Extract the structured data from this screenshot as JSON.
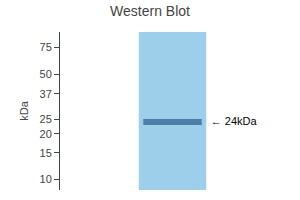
{
  "chart_data": {
    "type": "blot",
    "title": "Western Blot",
    "ylabel": "kDa",
    "log": "y",
    "ylim": [
      8.5,
      95
    ],
    "yticks": [
      75,
      50,
      37,
      25,
      20,
      15,
      10
    ],
    "grid": false,
    "tick_labels": "y",
    "series": [
      {
        "type": "lane",
        "color": "#9ecfea"
      },
      {
        "type": "band",
        "color": "#4a7fa8",
        "values": [
          24
        ],
        "annotations": [
          "← 24kDa"
        ]
      }
    ]
  }
}
